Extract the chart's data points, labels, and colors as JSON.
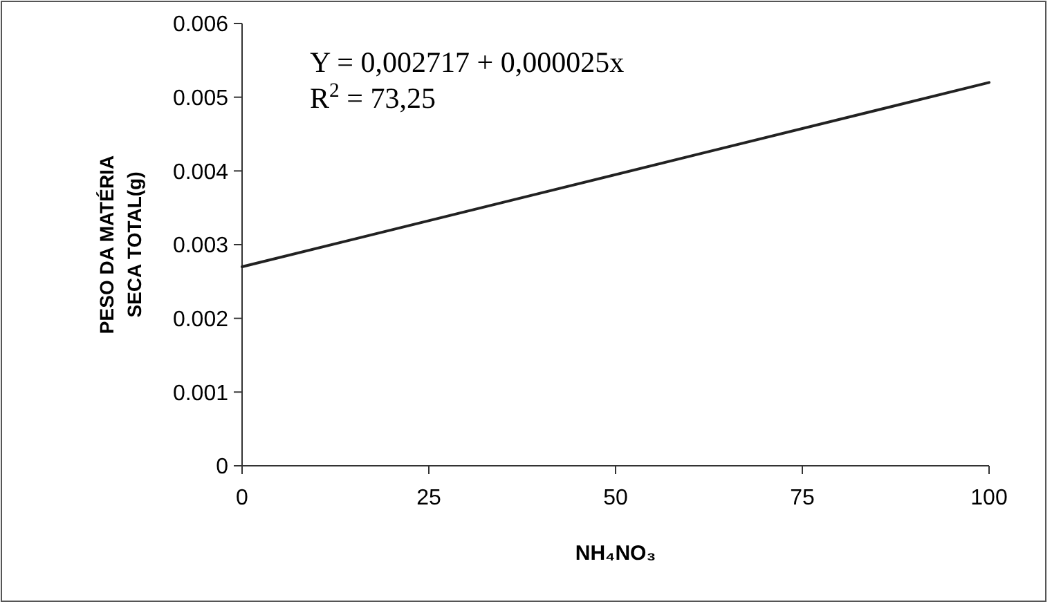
{
  "chart_data": {
    "type": "line",
    "x": [
      0,
      100
    ],
    "series": [
      {
        "color": "#222222",
        "values": [
          0.0027,
          0.0052
        ]
      }
    ],
    "xlim": [
      0,
      100
    ],
    "xticks": [
      0,
      25,
      50,
      75,
      100
    ],
    "ylim": [
      0,
      0.006
    ],
    "yticks": [
      {
        "value": 0,
        "label": "0"
      },
      {
        "value": 0.001,
        "label": "0.001"
      },
      {
        "value": 0.002,
        "label": "0.002"
      },
      {
        "value": 0.003,
        "label": "0.003"
      },
      {
        "value": 0.004,
        "label": "0.004"
      },
      {
        "value": 0.005,
        "label": "0.005"
      },
      {
        "value": 0.006,
        "label": "0.006"
      }
    ],
    "xlabel": "NH₄NO₃",
    "ylabel": "PESO DA MATÉRIA\nSECA TOTAL(g)",
    "annotations": [
      "Y = 0,002717 + 0,000025x",
      "R$^{2}$ = 73,25"
    ],
    "marker": "none",
    "line_style": "solid"
  }
}
